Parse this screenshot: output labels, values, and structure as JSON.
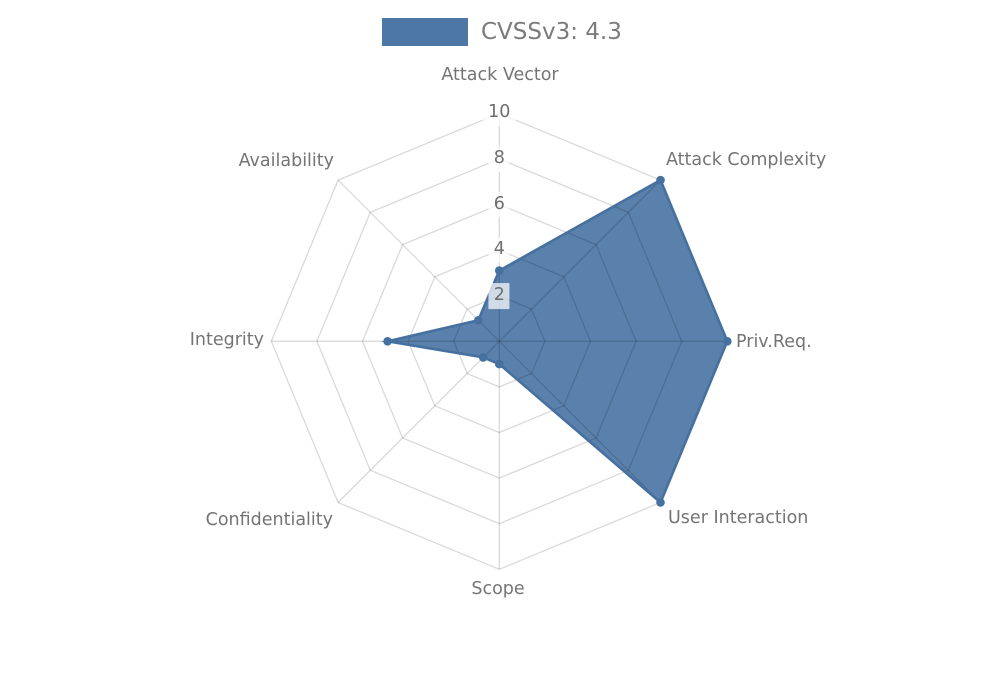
{
  "legend": {
    "label": "CVSSv3: 4.3",
    "swatch_color": "#4d77a6"
  },
  "chart_data": {
    "type": "radar",
    "title": "",
    "categories": [
      "Attack Vector",
      "Attack Complexity",
      "Priv.Req.",
      "User Interaction",
      "Scope",
      "Confidentiality",
      "Integrity",
      "Availability"
    ],
    "series": [
      {
        "name": "CVSSv3: 4.3",
        "values": [
          3.1,
          10,
          10,
          10,
          1.0,
          1.0,
          4.9,
          1.3
        ]
      }
    ],
    "radial_ticks": [
      2,
      4,
      6,
      8,
      10
    ],
    "r_min": 0,
    "r_max": 10,
    "start_axis": "top",
    "direction": "clockwise",
    "grid": "polygon-web",
    "legend_position": "top-center",
    "colors": {
      "series_fill": "rgba(77,119,166,0.93)",
      "series_stroke": "#46709f",
      "marker": "#46709f",
      "grid_line": "rgba(0,0,0,0.15)",
      "axis_label_text": "#747474",
      "tick_text": "#6e6e6e",
      "tick_box_bg": "rgba(255,255,255,0.72)",
      "legend_text": "#7b7b7b"
    }
  }
}
